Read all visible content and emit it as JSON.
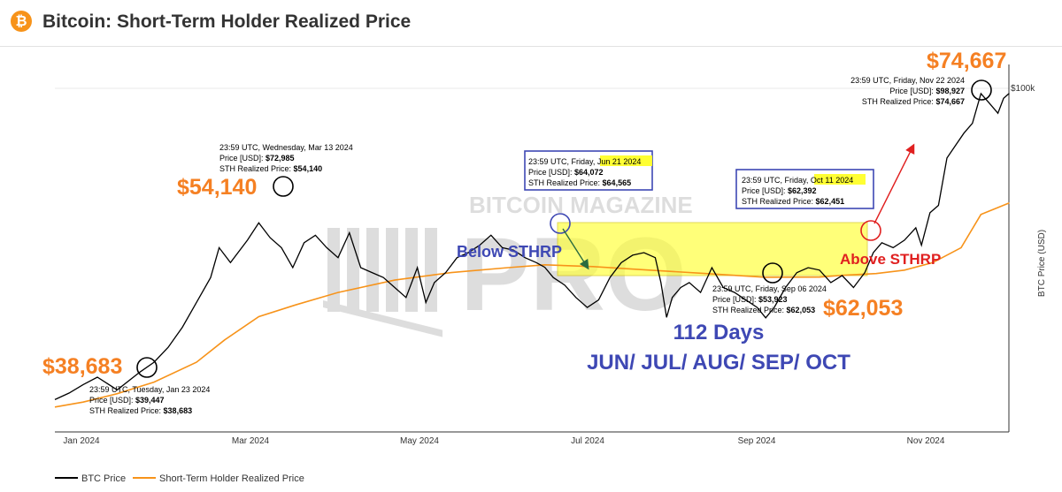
{
  "header": {
    "logo_glyph": "₿",
    "title": "Bitcoin: Short-Term Holder Realized Price"
  },
  "colors": {
    "price": "#000000",
    "sthrp": "#f7931a",
    "big_label": "#f58023",
    "blue": "#3e48b4",
    "red": "#e02020",
    "highlight": "#ffff33"
  },
  "watermark": {
    "top": "BITCOIN MAGAZINE",
    "bottom": "PRO"
  },
  "chart_data": {
    "type": "line",
    "xlabels": [
      "Jan 2024",
      "Mar 2024",
      "May 2024",
      "Jul 2024",
      "Sep 2024",
      "Nov 2024"
    ],
    "y_axis_label": "BTC Price (USD)",
    "y_tick": "$100k",
    "series": [
      {
        "name": "BTC Price",
        "color": "#000000",
        "points": [
          [
            0,
            37500
          ],
          [
            5,
            38800
          ],
          [
            10,
            40500
          ],
          [
            15,
            42000
          ],
          [
            22,
            39447
          ],
          [
            30,
            43000
          ],
          [
            35,
            45000
          ],
          [
            40,
            48000
          ],
          [
            45,
            52000
          ],
          [
            50,
            57000
          ],
          [
            55,
            62000
          ],
          [
            58,
            68000
          ],
          [
            62,
            65000
          ],
          [
            68,
            69500
          ],
          [
            72,
            72985
          ],
          [
            76,
            70000
          ],
          [
            80,
            68000
          ],
          [
            84,
            64000
          ],
          [
            88,
            69000
          ],
          [
            92,
            70500
          ],
          [
            96,
            68000
          ],
          [
            100,
            66000
          ],
          [
            104,
            71000
          ],
          [
            108,
            64000
          ],
          [
            112,
            63000
          ],
          [
            116,
            62000
          ],
          [
            120,
            60000
          ],
          [
            124,
            58000
          ],
          [
            128,
            64000
          ],
          [
            131,
            57000
          ],
          [
            134,
            61000
          ],
          [
            138,
            63000
          ],
          [
            142,
            66000
          ],
          [
            146,
            67000
          ],
          [
            150,
            68500
          ],
          [
            154,
            70500
          ],
          [
            158,
            68000
          ],
          [
            162,
            67500
          ],
          [
            166,
            66000
          ],
          [
            170,
            65000
          ],
          [
            173,
            64072
          ],
          [
            176,
            62000
          ],
          [
            180,
            60500
          ],
          [
            184,
            58000
          ],
          [
            188,
            56000
          ],
          [
            192,
            57500
          ],
          [
            196,
            62000
          ],
          [
            200,
            65000
          ],
          [
            204,
            66500
          ],
          [
            208,
            67000
          ],
          [
            212,
            66000
          ],
          [
            214,
            61000
          ],
          [
            216,
            54000
          ],
          [
            218,
            58000
          ],
          [
            221,
            60000
          ],
          [
            224,
            61000
          ],
          [
            228,
            59000
          ],
          [
            232,
            64000
          ],
          [
            236,
            60000
          ],
          [
            240,
            59000
          ],
          [
            244,
            57500
          ],
          [
            248,
            56000
          ],
          [
            251,
            53923
          ],
          [
            254,
            56000
          ],
          [
            258,
            60000
          ],
          [
            262,
            63000
          ],
          [
            266,
            64000
          ],
          [
            270,
            63500
          ],
          [
            274,
            61000
          ],
          [
            278,
            62392
          ],
          [
            282,
            60000
          ],
          [
            286,
            63000
          ],
          [
            289,
            67000
          ],
          [
            292,
            69000
          ],
          [
            296,
            68000
          ],
          [
            300,
            69500
          ],
          [
            304,
            72000
          ],
          [
            306,
            68500
          ],
          [
            309,
            75000
          ],
          [
            312,
            76500
          ],
          [
            315,
            86000
          ],
          [
            318,
            88500
          ],
          [
            321,
            91000
          ],
          [
            324,
            93000
          ],
          [
            327,
            98927
          ],
          [
            330,
            97000
          ],
          [
            333,
            95000
          ],
          [
            335,
            98000
          ],
          [
            337,
            99000
          ]
        ]
      },
      {
        "name": "Short-Term Holder Realized Price",
        "color": "#f7931a",
        "points": [
          [
            0,
            36000
          ],
          [
            10,
            37000
          ],
          [
            22,
            38683
          ],
          [
            35,
            41000
          ],
          [
            50,
            45000
          ],
          [
            60,
            49500
          ],
          [
            72,
            54140
          ],
          [
            85,
            56500
          ],
          [
            100,
            59000
          ],
          [
            120,
            61500
          ],
          [
            140,
            63000
          ],
          [
            160,
            64000
          ],
          [
            173,
            64565
          ],
          [
            190,
            64200
          ],
          [
            210,
            63500
          ],
          [
            230,
            62800
          ],
          [
            251,
            62053
          ],
          [
            270,
            62100
          ],
          [
            278,
            62451
          ],
          [
            290,
            62800
          ],
          [
            300,
            63500
          ],
          [
            310,
            65000
          ],
          [
            320,
            68000
          ],
          [
            327,
            74667
          ],
          [
            337,
            77000
          ]
        ]
      }
    ],
    "annotations": [
      {
        "date": "23:59 UTC, Tuesday, Jan 23 2024",
        "price_label": "Price [USD]:",
        "price": "$39,447",
        "sth_label": "STH Realized Price:",
        "sth": "$38,683",
        "big": "$38,683"
      },
      {
        "date": "23:59 UTC, Wednesday, Mar 13 2024",
        "price_label": "Price [USD]:",
        "price": "$72,985",
        "sth_label": "STH Realized Price:",
        "sth": "$54,140",
        "big": "$54,140"
      },
      {
        "date_prefix": "23:59 UTC, Friday,",
        "date_hl": "Jun 21 2024",
        "price_label": "Price [USD]:",
        "price": "$64,072",
        "sth_label": "STH Realized Price:",
        "sth": "$64,565"
      },
      {
        "date": "23:59 UTC, Friday, Sep 06 2024",
        "price_label": "Price [USD]:",
        "price": "$53,923",
        "sth_label": "STH Realized Price:",
        "sth": "$62,053",
        "big": "$62,053"
      },
      {
        "date_prefix": "23:59 UTC, Friday,",
        "date_hl": "Oct 11 2024",
        "price_label": "Price [USD]:",
        "price": "$62,392",
        "sth_label": "STH Realized Price:",
        "sth": "$62,451"
      },
      {
        "date": "23:59 UTC, Friday, Nov 22 2024",
        "price_label": "Price [USD]:",
        "price": "$98,927",
        "sth_label": "STH Realized Price:",
        "sth": "$74,667",
        "big": "$74,667"
      }
    ],
    "callouts": {
      "below": "Below STHRP",
      "above": "Above STHRP",
      "days": "112 Days",
      "months": "JUN/ JUL/ AUG/ SEP/ OCT"
    },
    "legend": [
      "BTC Price",
      "Short-Term Holder Realized Price"
    ]
  }
}
